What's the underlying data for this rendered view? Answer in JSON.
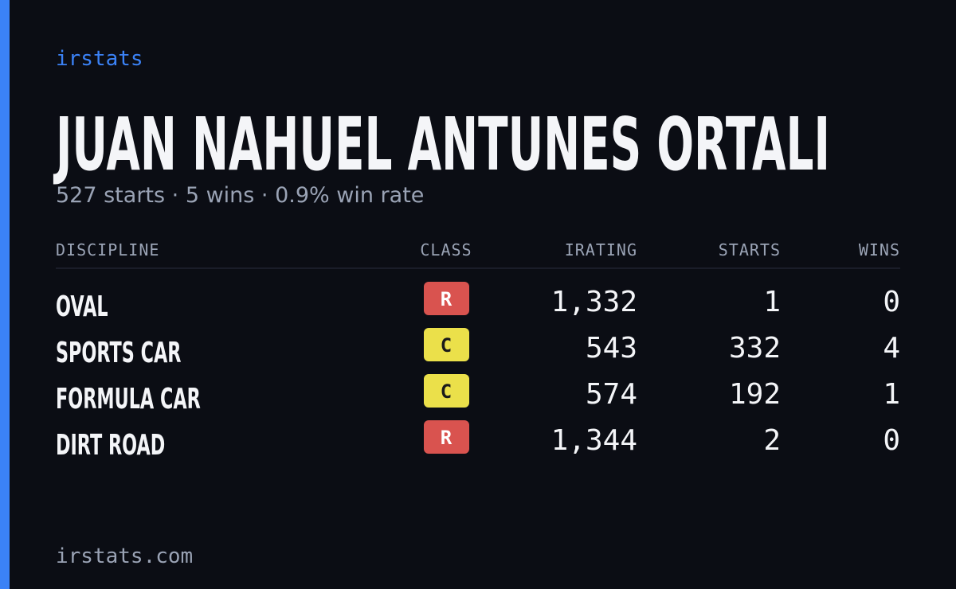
{
  "brand": "irstats",
  "title": "JUAN NAHUEL ANTUNES ORTALI",
  "subtitle": "527 starts · 5 wins · 0.9% win rate",
  "table": {
    "headers": [
      "DISCIPLINE",
      "CLASS",
      "IRATING",
      "STARTS",
      "WINS"
    ],
    "rows": [
      {
        "discipline": "OVAL",
        "class": "R",
        "class_color": "#d9534f",
        "irating": "1,332",
        "starts": "1",
        "wins": "0"
      },
      {
        "discipline": "SPORTS CAR",
        "class": "C",
        "class_color": "#ebe04a",
        "irating": "543",
        "starts": "332",
        "wins": "4"
      },
      {
        "discipline": "FORMULA CAR",
        "class": "C",
        "class_color": "#ebe04a",
        "irating": "574",
        "starts": "192",
        "wins": "1"
      },
      {
        "discipline": "DIRT ROAD",
        "class": "R",
        "class_color": "#d9534f",
        "irating": "1,344",
        "starts": "2",
        "wins": "0"
      }
    ]
  },
  "footer": "irstats.com"
}
